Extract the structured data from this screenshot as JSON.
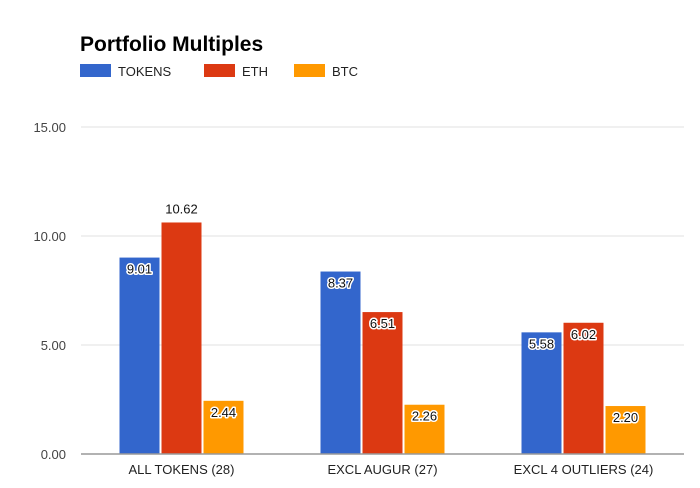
{
  "chart_data": {
    "type": "bar",
    "title": "Portfolio Multiples",
    "xlabel": "",
    "ylabel": "",
    "ylim": [
      0,
      15
    ],
    "yticks": [
      "0.00",
      "5.00",
      "10.00",
      "15.00"
    ],
    "ytick_values": [
      0,
      5,
      10,
      15
    ],
    "grid": true,
    "legend_position": "top-left",
    "categories": [
      "ALL TOKENS (28)",
      "EXCL AUGUR (27)",
      "EXCL 4 OUTLIERS (24)"
    ],
    "series": [
      {
        "name": "TOKENS",
        "color": "#3366cc",
        "values": [
          9.01,
          8.37,
          5.58
        ],
        "labels": [
          "9.01",
          "8.37",
          "5.58"
        ]
      },
      {
        "name": "ETH",
        "color": "#dc3912",
        "values": [
          10.62,
          6.51,
          6.02
        ],
        "labels": [
          "10.62",
          "6.51",
          "6.02"
        ]
      },
      {
        "name": "BTC",
        "color": "#ff9900",
        "values": [
          2.44,
          2.26,
          2.2
        ],
        "labels": [
          "2.44",
          "2.26",
          "2.20"
        ]
      }
    ]
  }
}
